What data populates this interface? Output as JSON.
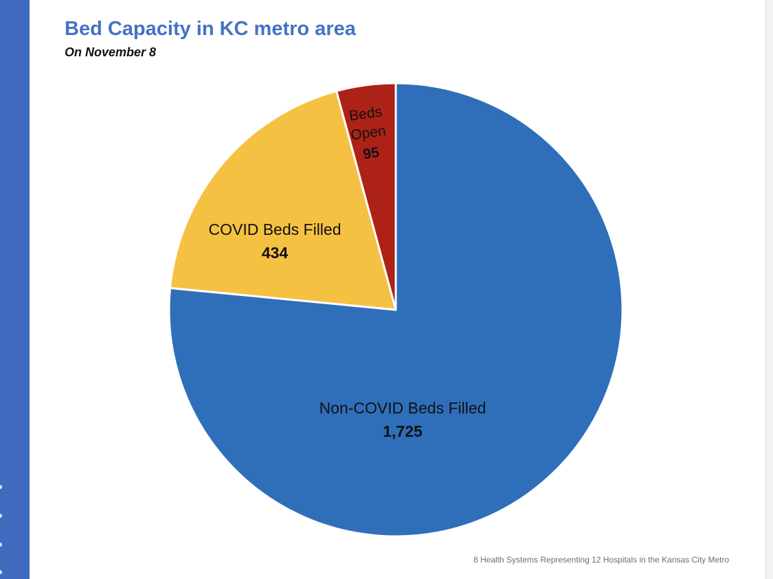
{
  "title": "Bed Capacity in KC metro area",
  "subtitle": "On November 8",
  "footnote": "8 Health Systems Representing 12 Hospitals in the Kansas City Metro",
  "colors": {
    "title": "#4472c4",
    "side_bar": "#3f6bbf",
    "slice_edge": "#ffffff"
  },
  "chart_data": {
    "type": "pie",
    "title": "Bed Capacity in KC metro area",
    "subtitle": "On November 8",
    "slices": [
      {
        "name": "Non-COVID Beds Filled",
        "value": 1725,
        "value_label": "1,725",
        "color": "#2f6fba"
      },
      {
        "name": "COVID Beds Filled",
        "value": 434,
        "value_label": "434",
        "color": "#f4c142"
      },
      {
        "name": "Beds Open",
        "value": 95,
        "value_label": "95",
        "color": "#ad2217"
      }
    ],
    "slice_order": "clockwise from 12 o'clock: Non-COVID Beds Filled, COVID Beds Filled, Beds Open",
    "labels": "inside slices, name above bold value",
    "legend": "none"
  }
}
